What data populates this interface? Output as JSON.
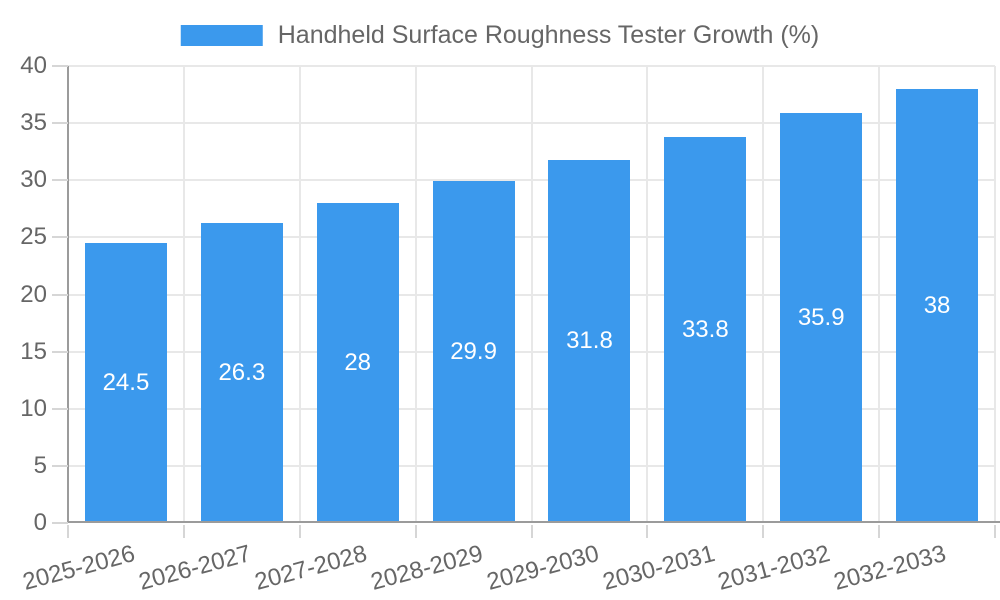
{
  "legend": {
    "label": "Handheld Surface Roughness Tester Growth (%)"
  },
  "chart_data": {
    "type": "bar",
    "title": "Handheld Surface Roughness Tester Growth (%)",
    "categories": [
      "2025-2026",
      "2026-2027",
      "2027-2028",
      "2028-2029",
      "2029-2030",
      "2030-2031",
      "2031-2032",
      "2032-2033"
    ],
    "values": [
      24.5,
      26.3,
      28,
      29.9,
      31.8,
      33.8,
      35.9,
      38
    ],
    "value_labels": [
      "24.5",
      "26.3",
      "28",
      "29.9",
      "31.8",
      "33.8",
      "35.9",
      "38"
    ],
    "xlabel": "",
    "ylabel": "",
    "ylim": [
      0,
      40
    ],
    "yticks": [
      0,
      5,
      10,
      15,
      20,
      25,
      30,
      35,
      40
    ],
    "ytick_labels": [
      "0",
      "5",
      "10",
      "15",
      "20",
      "25",
      "30",
      "35",
      "40"
    ],
    "grid": true,
    "legend_position": "top",
    "bar_labels_inside": true,
    "xtick_rotation_deg": -15
  },
  "colors": {
    "bar": "#3b99ed",
    "grid": "#e8e8e8",
    "axis": "#9b9b9b",
    "tick": "#d6d6d6",
    "label_text": "#666666",
    "bar_value_text": "#ffffff",
    "background": "#ffffff"
  }
}
